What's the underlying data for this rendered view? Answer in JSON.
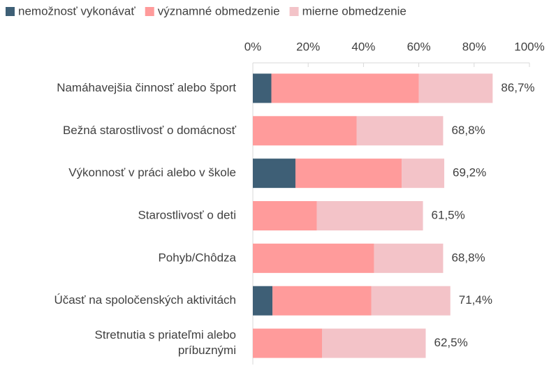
{
  "chart_data": {
    "type": "stacked-bar-horizontal",
    "categories": [
      "Namáhavejšia činnosť alebo šport",
      "Bežná starostlivosť o domácnosť",
      "Výkonnosť v práci alebo v škole",
      "Starostlivosť o deti",
      "Pohyb/Chôdza",
      "Účasť na spoločenských aktivitách",
      [
        "Stretnutia s priateľmi alebo",
        "príbuznými"
      ]
    ],
    "series": [
      {
        "name": "nemožnosť vykonávať",
        "color": "#3e5f76",
        "values": [
          6.7,
          0,
          15.4,
          0,
          0,
          7.1,
          0
        ]
      },
      {
        "name": "významné obmedzenie",
        "color": "#ff9b9b",
        "values": [
          53.3,
          37.5,
          38.4,
          23.1,
          43.8,
          35.7,
          25.0
        ]
      },
      {
        "name": "mierne obmedzenie",
        "color": "#f3c3c8",
        "values": [
          26.7,
          31.3,
          15.4,
          38.4,
          25.0,
          28.6,
          37.5
        ]
      }
    ],
    "totals": [
      86.7,
      68.8,
      69.2,
      61.5,
      68.8,
      71.4,
      62.5
    ],
    "total_labels": [
      "86,7%",
      "68,8%",
      "69,2%",
      "61,5%",
      "68,8%",
      "71,4%",
      "62,5%"
    ],
    "xlim": [
      0,
      100
    ],
    "xticks": [
      {
        "value": 0,
        "label": "0%"
      },
      {
        "value": 20,
        "label": "20%"
      },
      {
        "value": 40,
        "label": "40%"
      },
      {
        "value": 60,
        "label": "60%"
      },
      {
        "value": 80,
        "label": "80%"
      },
      {
        "value": 100,
        "label": "100%"
      }
    ],
    "legend": "top"
  }
}
